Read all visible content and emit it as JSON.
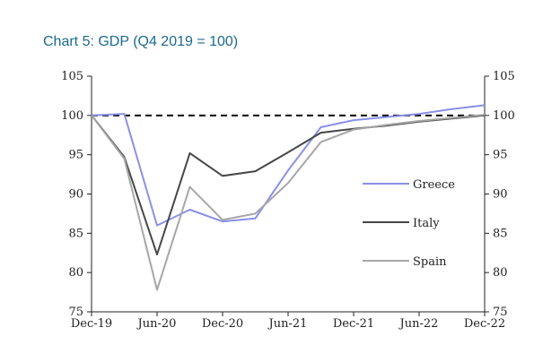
{
  "chart_data": {
    "type": "line",
    "title": "Chart 5: GDP (Q4 2019 = 100)",
    "ylim": [
      75,
      105
    ],
    "yticks": [
      105,
      100,
      95,
      90,
      85,
      80,
      75
    ],
    "x": [
      "Dec-19",
      "Mar-20",
      "Jun-20",
      "Sep-20",
      "Dec-20",
      "Mar-21",
      "Jun-21",
      "Sep-21",
      "Dec-21",
      "Mar-22",
      "Jun-22",
      "Sep-22",
      "Dec-22"
    ],
    "xticks": [
      "Dec-19",
      "Jun-20",
      "Dec-20",
      "Jun-21",
      "Dec-21",
      "Jun-22",
      "Dec-22"
    ],
    "reference_line": 100,
    "series": [
      {
        "name": "Greece",
        "color": "#8a8fe6",
        "values": [
          100,
          100.2,
          86,
          88,
          86.5,
          86.9,
          93,
          98.5,
          99.4,
          99.8,
          100.2,
          100.8,
          101.3
        ]
      },
      {
        "name": "Italy",
        "color": "#474747",
        "values": [
          100,
          94.7,
          82.3,
          95.2,
          92.3,
          92.9,
          95.3,
          97.8,
          98.3,
          98.7,
          99.2,
          99.6,
          100
        ]
      },
      {
        "name": "Spain",
        "color": "#a6a6a6",
        "values": [
          100,
          94.5,
          77.8,
          90.9,
          86.7,
          87.5,
          91.4,
          96.6,
          98.2,
          98.8,
          99.3,
          99.7,
          100.1
        ]
      }
    ],
    "legend_position": "center-right"
  }
}
